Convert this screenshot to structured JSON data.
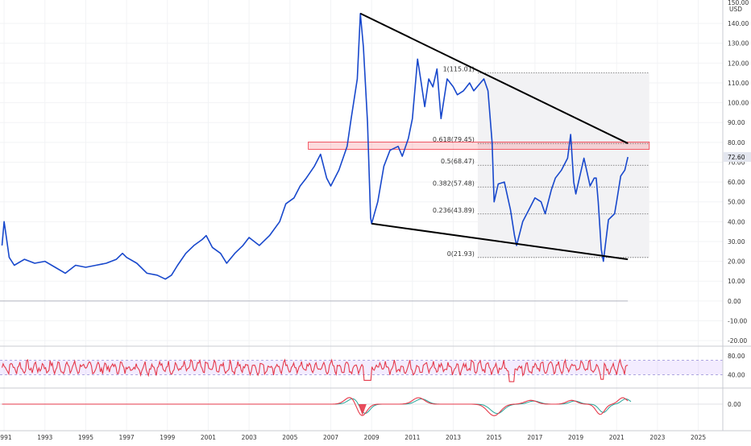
{
  "chart_data": {
    "type": "line",
    "currency_label": "USD",
    "top_label": "150.00",
    "y_ticks": [
      -20,
      -10,
      0,
      10,
      20,
      30,
      40,
      50,
      60,
      70,
      80,
      90,
      100,
      110,
      120,
      130,
      140
    ],
    "x_ticks": [
      1991,
      1993,
      1995,
      1997,
      1999,
      2001,
      2003,
      2005,
      2007,
      2009,
      2011,
      2013,
      2015,
      2017,
      2019,
      2021,
      2023,
      2025
    ],
    "ylim": [
      -22,
      151
    ],
    "xlim": [
      1990.8,
      2026.2
    ],
    "last_price": 72.6,
    "price_series": [
      [
        1990.9,
        28
      ],
      [
        1991.0,
        40
      ],
      [
        1991.1,
        33
      ],
      [
        1991.25,
        22
      ],
      [
        1991.5,
        18
      ],
      [
        1992.0,
        21
      ],
      [
        1992.5,
        19
      ],
      [
        1993.0,
        20
      ],
      [
        1993.5,
        17
      ],
      [
        1994.0,
        14
      ],
      [
        1994.5,
        18
      ],
      [
        1995.0,
        17
      ],
      [
        1995.5,
        18
      ],
      [
        1996.0,
        19
      ],
      [
        1996.5,
        21
      ],
      [
        1996.8,
        24
      ],
      [
        1997.0,
        22
      ],
      [
        1997.5,
        19
      ],
      [
        1998.0,
        14
      ],
      [
        1998.5,
        13
      ],
      [
        1998.9,
        11
      ],
      [
        1999.2,
        13
      ],
      [
        1999.5,
        18
      ],
      [
        1999.9,
        24
      ],
      [
        2000.3,
        28
      ],
      [
        2000.7,
        31
      ],
      [
        2000.9,
        33
      ],
      [
        2001.2,
        27
      ],
      [
        2001.6,
        24
      ],
      [
        2001.9,
        19
      ],
      [
        2002.3,
        24
      ],
      [
        2002.7,
        28
      ],
      [
        2003.0,
        32
      ],
      [
        2003.5,
        28
      ],
      [
        2004.0,
        33
      ],
      [
        2004.5,
        40
      ],
      [
        2004.8,
        49
      ],
      [
        2005.2,
        52
      ],
      [
        2005.5,
        58
      ],
      [
        2005.8,
        62
      ],
      [
        2006.2,
        68
      ],
      [
        2006.5,
        74
      ],
      [
        2006.8,
        62
      ],
      [
        2007.0,
        58
      ],
      [
        2007.4,
        66
      ],
      [
        2007.8,
        78
      ],
      [
        2008.0,
        92
      ],
      [
        2008.3,
        112
      ],
      [
        2008.45,
        145
      ],
      [
        2008.6,
        128
      ],
      [
        2008.8,
        90
      ],
      [
        2008.95,
        42
      ],
      [
        2009.0,
        39
      ],
      [
        2009.3,
        50
      ],
      [
        2009.6,
        68
      ],
      [
        2009.9,
        76
      ],
      [
        2010.3,
        78
      ],
      [
        2010.5,
        73
      ],
      [
        2010.8,
        82
      ],
      [
        2011.0,
        92
      ],
      [
        2011.25,
        122
      ],
      [
        2011.4,
        112
      ],
      [
        2011.6,
        98
      ],
      [
        2011.8,
        112
      ],
      [
        2012.0,
        108
      ],
      [
        2012.2,
        117
      ],
      [
        2012.4,
        92
      ],
      [
        2012.7,
        112
      ],
      [
        2013.0,
        108
      ],
      [
        2013.2,
        104
      ],
      [
        2013.5,
        106
      ],
      [
        2013.8,
        110
      ],
      [
        2014.0,
        106
      ],
      [
        2014.5,
        112
      ],
      [
        2014.7,
        106
      ],
      [
        2014.9,
        80
      ],
      [
        2015.0,
        50
      ],
      [
        2015.2,
        59
      ],
      [
        2015.5,
        60
      ],
      [
        2015.8,
        46
      ],
      [
        2016.0,
        33
      ],
      [
        2016.1,
        28
      ],
      [
        2016.4,
        40
      ],
      [
        2016.7,
        46
      ],
      [
        2017.0,
        52
      ],
      [
        2017.3,
        50
      ],
      [
        2017.5,
        44
      ],
      [
        2017.8,
        56
      ],
      [
        2018.0,
        62
      ],
      [
        2018.3,
        66
      ],
      [
        2018.6,
        72
      ],
      [
        2018.75,
        84
      ],
      [
        2018.9,
        60
      ],
      [
        2019.0,
        54
      ],
      [
        2019.2,
        63
      ],
      [
        2019.4,
        72
      ],
      [
        2019.7,
        58
      ],
      [
        2019.9,
        62
      ],
      [
        2020.0,
        62
      ],
      [
        2020.1,
        50
      ],
      [
        2020.25,
        26
      ],
      [
        2020.35,
        20
      ],
      [
        2020.6,
        41
      ],
      [
        2020.9,
        44
      ],
      [
        2021.0,
        50
      ],
      [
        2021.2,
        63
      ],
      [
        2021.4,
        66
      ],
      [
        2021.55,
        72.6
      ]
    ],
    "upper_trendline": [
      [
        2008.45,
        145
      ],
      [
        2021.55,
        79.5
      ]
    ],
    "lower_trendline": [
      [
        2009.0,
        39
      ],
      [
        2021.55,
        21
      ]
    ],
    "fib_levels": [
      {
        "ratio": "",
        "value": 115.01,
        "label": "1(115.01)"
      },
      {
        "ratio": "",
        "value": 79.45,
        "label": "0.618(79.45)"
      },
      {
        "ratio": "",
        "value": 68.47,
        "label": "0.5(68.47)"
      },
      {
        "ratio": "",
        "value": 57.48,
        "label": "0.382(57.48)"
      },
      {
        "ratio": "",
        "value": 43.89,
        "label": "0.236(43.89)"
      },
      {
        "ratio": "",
        "value": 21.93,
        "label": "0(21.93)"
      }
    ],
    "fib_range_x": [
      2014.2,
      2022.6
    ],
    "resistance_zone": {
      "x": [
        2005.9,
        2022.6
      ],
      "y": [
        76.5,
        80.2
      ]
    },
    "oscillator_1": {
      "ticks": [
        80,
        40
      ],
      "band": [
        40,
        70
      ]
    },
    "oscillator_2": {
      "ticks": [
        "0.00"
      ]
    }
  }
}
